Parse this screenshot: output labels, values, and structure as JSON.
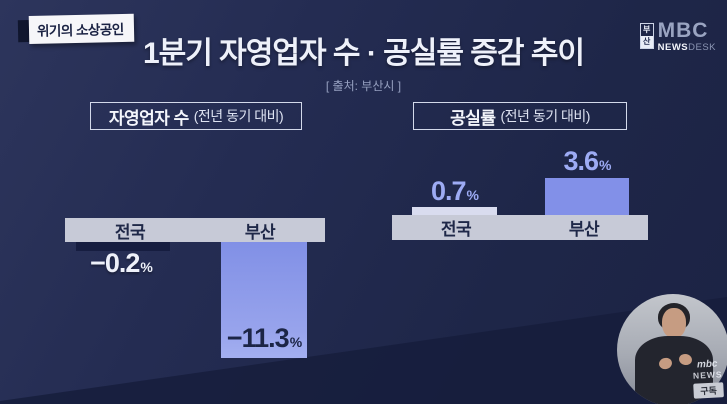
{
  "badge": {
    "label": "위기의 소상공인"
  },
  "header": {
    "title": "1분기 자영업자 수 · 공실률 증감 추이",
    "source": "[ 출처: 부산시 ]"
  },
  "logo": {
    "region_top": "부",
    "region_bottom": "산",
    "brand": "MBC",
    "news": "NEWS",
    "desk": "DESK"
  },
  "charts": [
    {
      "title_strong": "자영업자 수",
      "title_note": "(전년 동기 대비)",
      "categories": [
        "전국",
        "부산"
      ],
      "values": [
        {
          "num": "−0.2",
          "pct": "%"
        },
        {
          "num": "−11.3",
          "pct": "%"
        }
      ]
    },
    {
      "title_strong": "공실률",
      "title_note": "(전년 동기 대비)",
      "categories": [
        "전국",
        "부산"
      ],
      "values": [
        {
          "num": "0.7",
          "pct": "%"
        },
        {
          "num": "3.6",
          "pct": "%"
        }
      ]
    }
  ],
  "chart_data": [
    {
      "type": "bar",
      "title": "자영업자 수 (전년 동기 대비)",
      "categories": [
        "전국",
        "부산"
      ],
      "values": [
        -0.2,
        -11.3
      ],
      "unit": "%",
      "direction": "down",
      "bar_colors": [
        "#161d40",
        "#8e9bea"
      ],
      "value_label_colors": [
        "#eef1fa",
        "#1c2546"
      ]
    },
    {
      "type": "bar",
      "title": "공실률 (전년 동기 대비)",
      "categories": [
        "전국",
        "부산"
      ],
      "values": [
        0.7,
        3.6
      ],
      "unit": "%",
      "direction": "up",
      "bar_colors": [
        "#d9dcef",
        "#8290e8"
      ],
      "value_label_colors": [
        "#9dabf4",
        "#9dabf4"
      ]
    }
  ],
  "watermark": {
    "brand": "mbc",
    "news": "NEWS",
    "subscribe": "구독"
  },
  "colors": {
    "background": "#1e2648",
    "background_dark_diagonal": "#161d3c",
    "axis_bar": "#c7cad7",
    "bar_periwinkle": "#8290e8",
    "value_periwinkle": "#9dabf4",
    "value_white": "#eef1fa",
    "value_dark": "#1c2546",
    "badge_bg": "#f6f6f9",
    "badge_text": "#1a2243"
  }
}
